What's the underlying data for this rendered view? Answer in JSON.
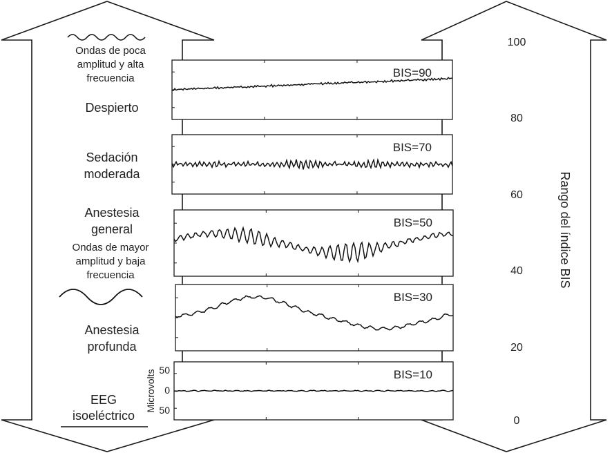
{
  "left_labels": {
    "fast_waves": "Ondas de poca amplitud y alta frecuencia",
    "fast_waves_lines": [
      "Ondas de poca",
      "amplitud y alta",
      "frecuencia"
    ],
    "awake": "Despierto",
    "moderate_sedation_lines": [
      "Sedación",
      "moderada"
    ],
    "general_anesthesia_lines": [
      "Anestesia",
      "general"
    ],
    "slow_waves_lines": [
      "Ondas de mayor",
      "amplitud y baja",
      "frecuencia"
    ],
    "deep_anesthesia_lines": [
      "Anestesia",
      "profunda"
    ],
    "isoelectric_lines": [
      "EEG",
      "isoeléctrico"
    ]
  },
  "panels": [
    {
      "label": "BIS=90",
      "state": "awake"
    },
    {
      "label": "BIS=70",
      "state": "moderate-sedation"
    },
    {
      "label": "BIS=50",
      "state": "general-anesthesia"
    },
    {
      "label": "BIS=30",
      "state": "deep-anesthesia"
    },
    {
      "label": "BIS=10",
      "state": "isoelectric"
    }
  ],
  "amplitude_axis": {
    "label": "Microvolts",
    "ticks": [
      "50",
      "0",
      "50"
    ]
  },
  "bis_scale": {
    "ticks": [
      "100",
      "80",
      "60",
      "40",
      "20",
      "0"
    ],
    "axis_label": "Rango del índice BIS"
  },
  "colors": {
    "line": "#1a1a1a",
    "trace": "#111111",
    "text": "#222222",
    "background": "#ffffff"
  }
}
